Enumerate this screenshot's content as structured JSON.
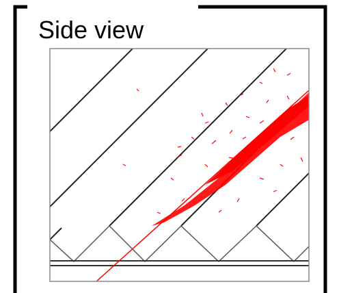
{
  "header": {
    "title": "Side view"
  }
}
